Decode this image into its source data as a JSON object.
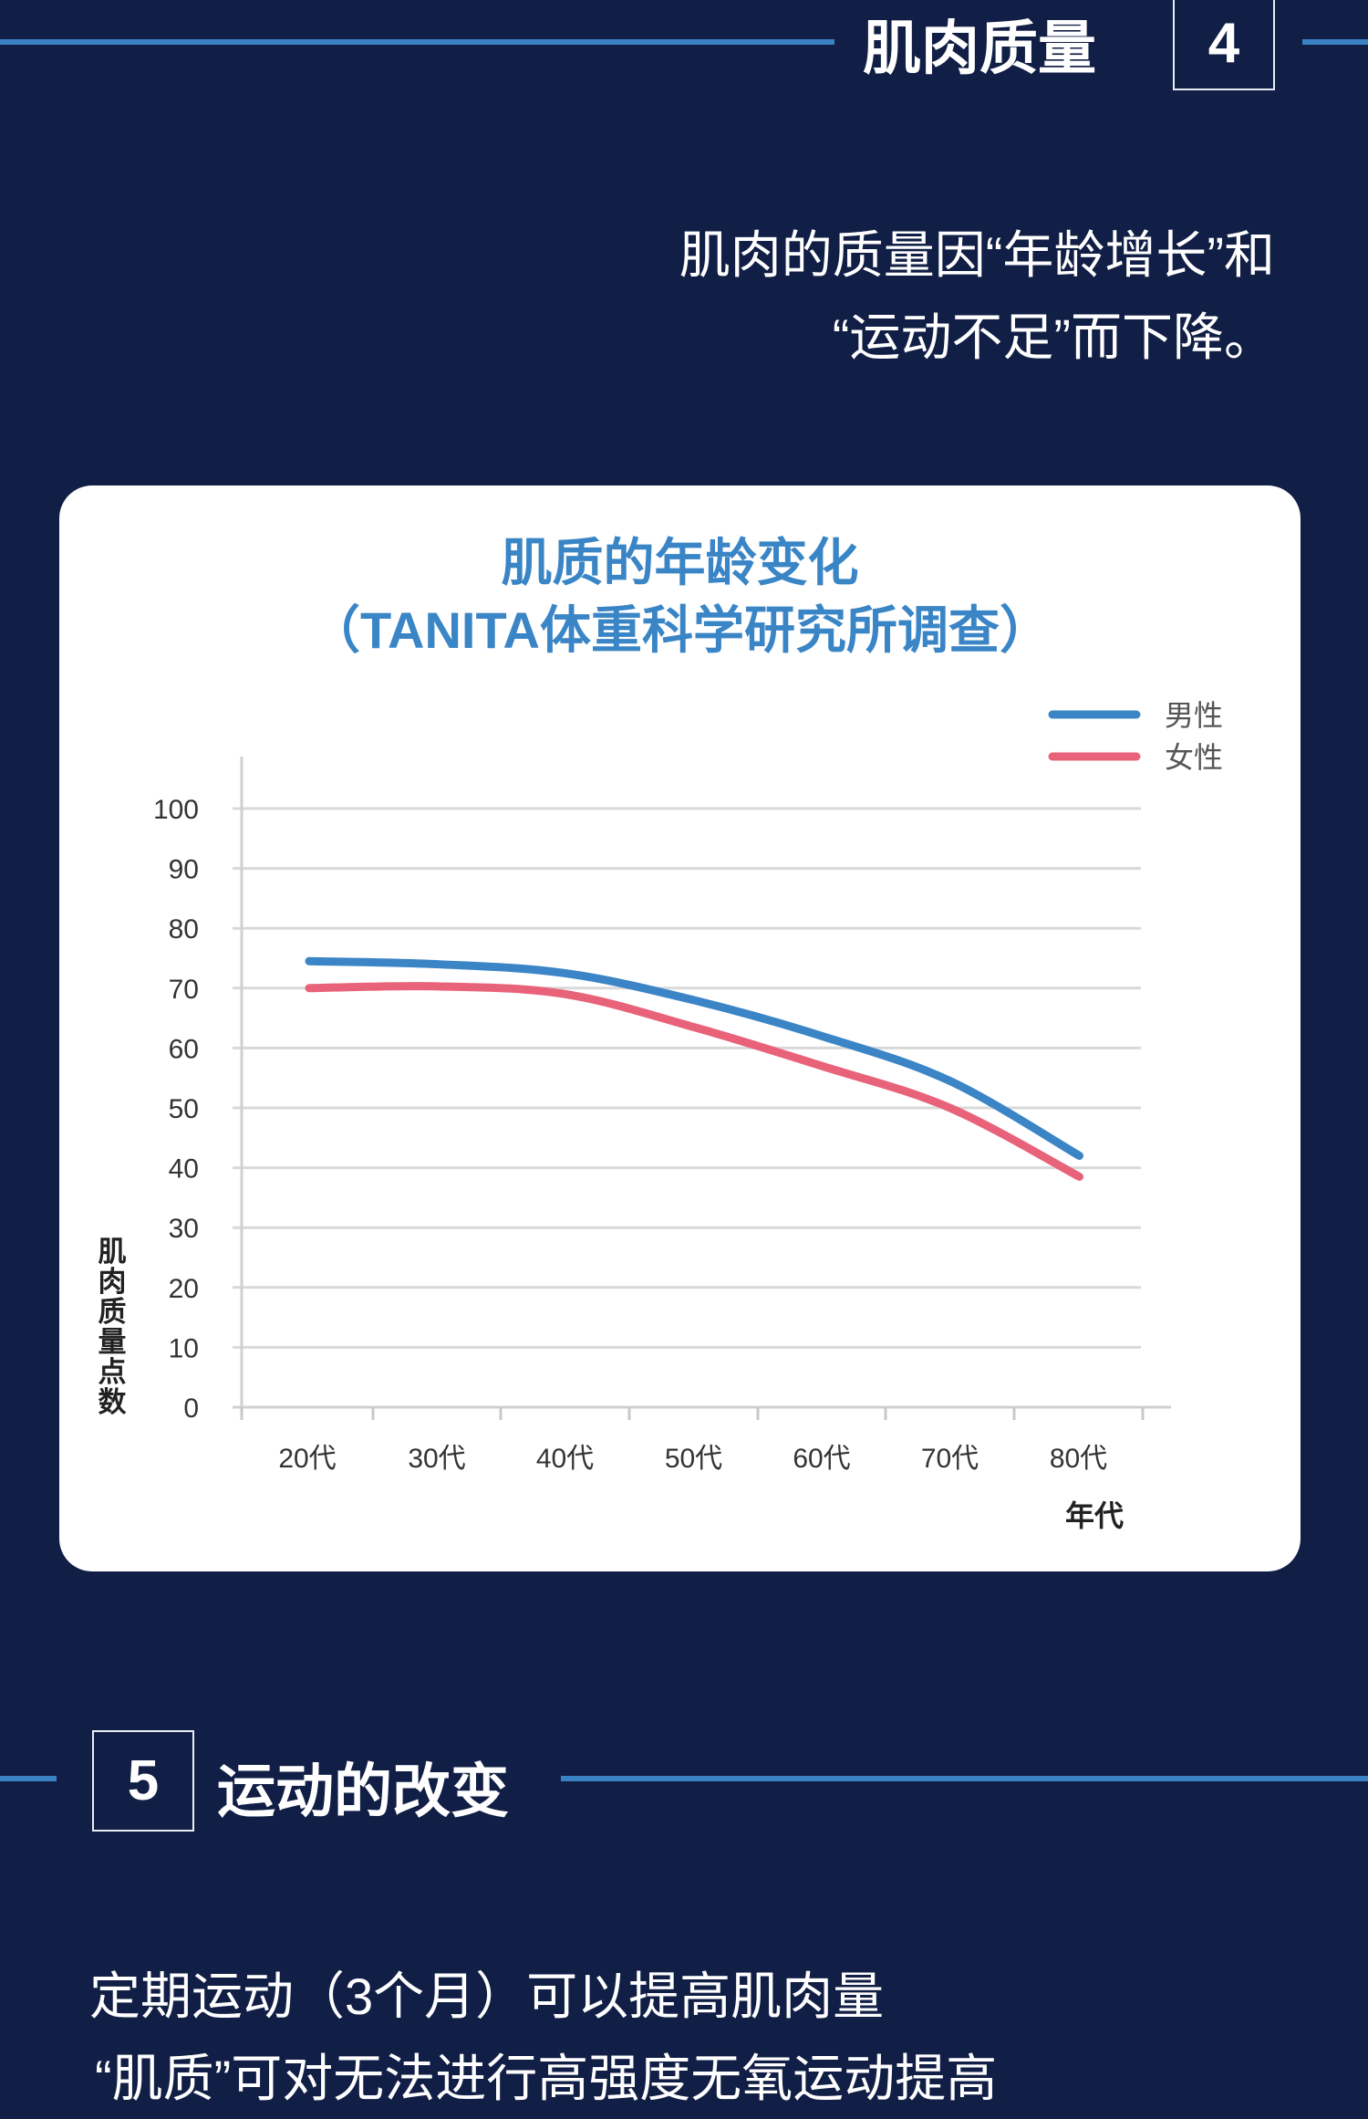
{
  "section4": {
    "number": "4",
    "title": "肌肉质量",
    "text_lines": [
      "肌肉的质量因“年龄增长”和",
      "“运动不足”而下降。"
    ]
  },
  "chart_data": {
    "type": "line",
    "title": "肌质的年龄变化",
    "subtitle": "（TANITA体重科学研究所调查）",
    "xlabel": "年代",
    "ylabel": "肌肉质量点数",
    "categories": [
      "20代",
      "30代",
      "40代",
      "50代",
      "60代",
      "70代",
      "80代"
    ],
    "yticks": [
      "0",
      "10",
      "20",
      "30",
      "40",
      "50",
      "60",
      "70",
      "80",
      "90",
      "100"
    ],
    "ylim": [
      0,
      100
    ],
    "grid": true,
    "legend_position": "top-right",
    "series": [
      {
        "name": "男性",
        "color": "#3b85c6",
        "values": [
          74.5,
          74,
          72.5,
          68,
          62,
          54.5,
          42
        ]
      },
      {
        "name": "女性",
        "color": "#e8637a",
        "values": [
          70,
          70.3,
          69,
          63.5,
          57,
          50,
          38.5
        ]
      }
    ]
  },
  "section5": {
    "number": "5",
    "title": "运动的改变",
    "text_lines": [
      "定期运动（3个月）可以提高肌肉量",
      "“肌质”可对无法进行高强度无氧运动提高"
    ]
  },
  "colors": {
    "background": "#111e45",
    "accent_line": "#3b82c4"
  }
}
